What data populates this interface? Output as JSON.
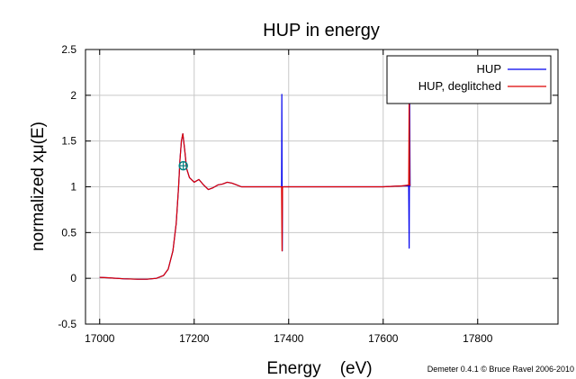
{
  "chart_data": {
    "type": "line",
    "title": "HUP in energy",
    "xlabel": "Energy    (eV)",
    "ylabel": "normalized xμ(E)",
    "credit": "Demeter 0.4.1 © Bruce Ravel 2006-2010",
    "xlim": [
      16970,
      17970
    ],
    "ylim": [
      -0.5,
      2.5
    ],
    "xticks": [
      17000,
      17200,
      17400,
      17600,
      17800
    ],
    "yticks": [
      -0.5,
      0,
      0.5,
      1,
      1.5,
      2,
      2.5
    ],
    "xtick_labels": [
      "17000",
      "17200",
      "17400",
      "17600",
      "17800"
    ],
    "ytick_labels": [
      "-0.5",
      "0",
      "0.5",
      "1",
      "1.5",
      "2",
      "2.5"
    ],
    "grid": true,
    "legend_position": "top-right",
    "series": [
      {
        "name": "HUP",
        "color": "#0000ee",
        "x": [
          17000,
          17020,
          17050,
          17080,
          17100,
          17120,
          17135,
          17145,
          17155,
          17162,
          17167,
          17170,
          17173,
          17176,
          17180,
          17184,
          17190,
          17200,
          17210,
          17220,
          17230,
          17240,
          17250,
          17260,
          17270,
          17280,
          17290,
          17300,
          17320,
          17340,
          17360,
          17380,
          17385,
          17385.5,
          17386,
          17386.5,
          17387,
          17388,
          17400,
          17450,
          17500,
          17550,
          17600,
          17640,
          17654,
          17655,
          17656,
          17657,
          17658
        ],
        "y": [
          0.01,
          0.005,
          -0.005,
          -0.01,
          -0.01,
          0.0,
          0.03,
          0.1,
          0.3,
          0.6,
          1.0,
          1.3,
          1.5,
          1.58,
          1.4,
          1.2,
          1.1,
          1.05,
          1.08,
          1.02,
          0.97,
          0.99,
          1.02,
          1.03,
          1.05,
          1.04,
          1.02,
          1.0,
          1.0,
          1.0,
          1.0,
          1.0,
          1.0,
          2.01,
          1.0,
          0.3,
          1.0,
          1.0,
          1.0,
          1.0,
          1.0,
          1.0,
          1.0,
          1.01,
          1.01,
          0.33,
          2.0,
          1.01,
          1.01
        ]
      },
      {
        "name": "HUP, deglitched",
        "color": "#dd0000",
        "x": [
          17000,
          17020,
          17050,
          17080,
          17100,
          17120,
          17135,
          17145,
          17155,
          17162,
          17167,
          17170,
          17173,
          17176,
          17180,
          17184,
          17190,
          17200,
          17210,
          17220,
          17230,
          17240,
          17250,
          17260,
          17270,
          17280,
          17290,
          17300,
          17320,
          17340,
          17360,
          17380,
          17385,
          17386,
          17387,
          17388,
          17400,
          17450,
          17500,
          17550,
          17600,
          17640,
          17654,
          17655,
          17656,
          17657,
          17658
        ],
        "y": [
          0.01,
          0.005,
          -0.005,
          -0.01,
          -0.01,
          0.0,
          0.03,
          0.1,
          0.3,
          0.6,
          1.0,
          1.3,
          1.5,
          1.58,
          1.4,
          1.2,
          1.1,
          1.05,
          1.08,
          1.02,
          0.97,
          0.99,
          1.02,
          1.03,
          1.05,
          1.04,
          1.02,
          1.0,
          1.0,
          1.0,
          1.0,
          1.0,
          1.0,
          0.3,
          1.0,
          1.0,
          1.0,
          1.0,
          1.0,
          1.0,
          1.0,
          1.01,
          1.02,
          1.98,
          1.02,
          1.02,
          1.02
        ]
      }
    ],
    "markers": [
      {
        "x": 17177,
        "y": 1.23,
        "color": "#008080",
        "shape": "circle-plus"
      }
    ]
  }
}
